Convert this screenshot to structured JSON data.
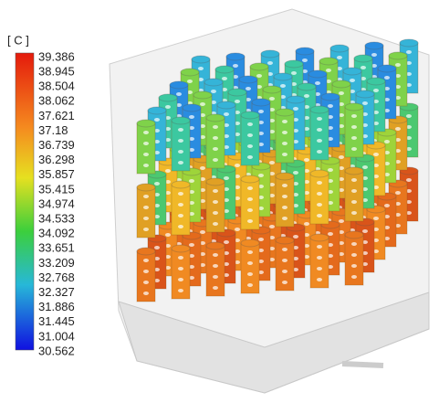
{
  "legend": {
    "unit": "[ C ]",
    "labels": [
      "39.386",
      "38.945",
      "38.504",
      "38.062",
      "37.621",
      "37.18",
      "36.739",
      "36.298",
      "35.857",
      "35.415",
      "34.974",
      "34.533",
      "34.092",
      "33.651",
      "33.209",
      "32.768",
      "32.327",
      "31.886",
      "31.445",
      "31.004",
      "30.562"
    ]
  }
}
